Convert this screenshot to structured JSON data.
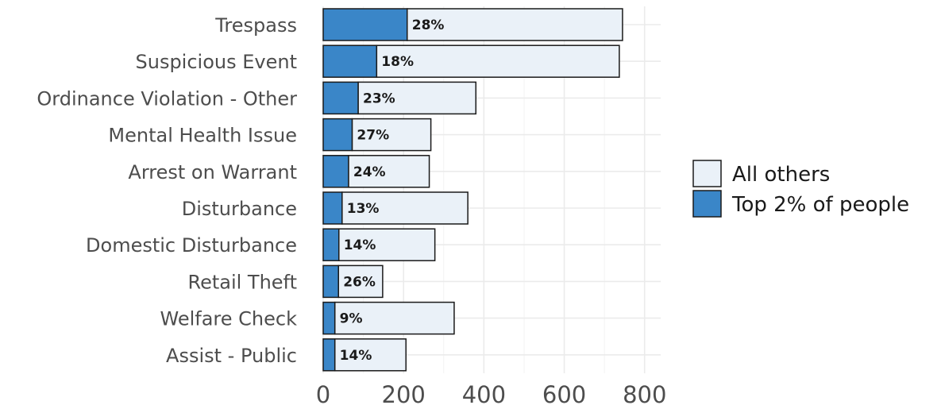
{
  "chart_data": {
    "type": "bar",
    "orientation": "horizontal",
    "stacked": true,
    "categories": [
      "Trespass",
      "Suspicious Event",
      "Ordinance Violation - Other",
      "Mental Health Issue",
      "Arrest on Warrant",
      "Disturbance",
      "Domestic Disturbance",
      "Retail Theft",
      "Welfare Check",
      "Assist - Public"
    ],
    "totals": [
      745,
      737,
      380,
      268,
      264,
      360,
      278,
      148,
      326,
      206
    ],
    "series": [
      {
        "name": "Top 2% of people",
        "color": "#3a86c8",
        "values": [
          209,
          133,
          87,
          72,
          63,
          47,
          39,
          38,
          29,
          29
        ]
      },
      {
        "name": "All others",
        "color": "#eaf1f8",
        "values": [
          536,
          604,
          293,
          196,
          201,
          313,
          239,
          110,
          297,
          177
        ]
      }
    ],
    "percent_labels": [
      "28%",
      "18%",
      "23%",
      "27%",
      "24%",
      "13%",
      "14%",
      "26%",
      "9%",
      "14%"
    ],
    "xticks": [
      "0",
      "200",
      "400",
      "600",
      "800"
    ],
    "xlim": [
      0,
      840
    ],
    "legend": {
      "position": "right",
      "entries": [
        {
          "label": "All others",
          "color": "#eaf1f8"
        },
        {
          "label": "Top 2% of people",
          "color": "#3a86c8"
        }
      ]
    },
    "grid": true,
    "title": "",
    "xlabel": "",
    "ylabel": ""
  }
}
